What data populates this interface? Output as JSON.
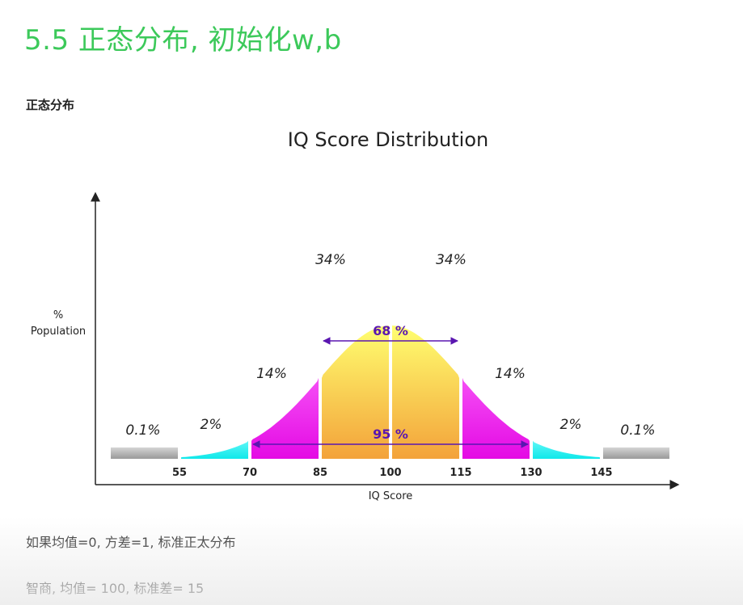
{
  "page": {
    "heading": "5.5 正态分布, 初始化w,b",
    "subheading": "正态分布",
    "note1": "如果均值=0, 方差=1, 标准正太分布",
    "note2": "智商, 均值= 100, 标准差= 15"
  },
  "chart_data": {
    "type": "area",
    "title": "IQ Score Distribution",
    "xlabel": "IQ Score",
    "ylabel": "% Population",
    "mean": 100,
    "sd": 15,
    "xlim": [
      40,
      160
    ],
    "ticks": [
      55,
      70,
      85,
      100,
      115,
      130,
      145
    ],
    "grid": false,
    "bands": [
      {
        "from": 40,
        "to": 55,
        "percent": "0.1%",
        "color": "#b8b8b8"
      },
      {
        "from": 55,
        "to": 70,
        "percent": "2%",
        "color": "#19f0f0"
      },
      {
        "from": 70,
        "to": 85,
        "percent": "14%",
        "color": "#ee10ee"
      },
      {
        "from": 85,
        "to": 100,
        "percent": "34%",
        "color": "#f7c43c"
      },
      {
        "from": 100,
        "to": 115,
        "percent": "34%",
        "color": "#f7c43c"
      },
      {
        "from": 115,
        "to": 130,
        "percent": "14%",
        "color": "#ee10ee"
      },
      {
        "from": 130,
        "to": 145,
        "percent": "2%",
        "color": "#19f0f0"
      },
      {
        "from": 145,
        "to": 160,
        "percent": "0.1%",
        "color": "#b8b8b8"
      }
    ],
    "ranges": [
      {
        "from": 85,
        "to": 115,
        "label": "68 %"
      },
      {
        "from": 70,
        "to": 130,
        "label": "95 %"
      }
    ],
    "colors": {
      "center_top": "#ffff70",
      "center_bottom": "#f3a23a",
      "range_arrow": "#5a16b0",
      "axis": "#222222"
    }
  }
}
